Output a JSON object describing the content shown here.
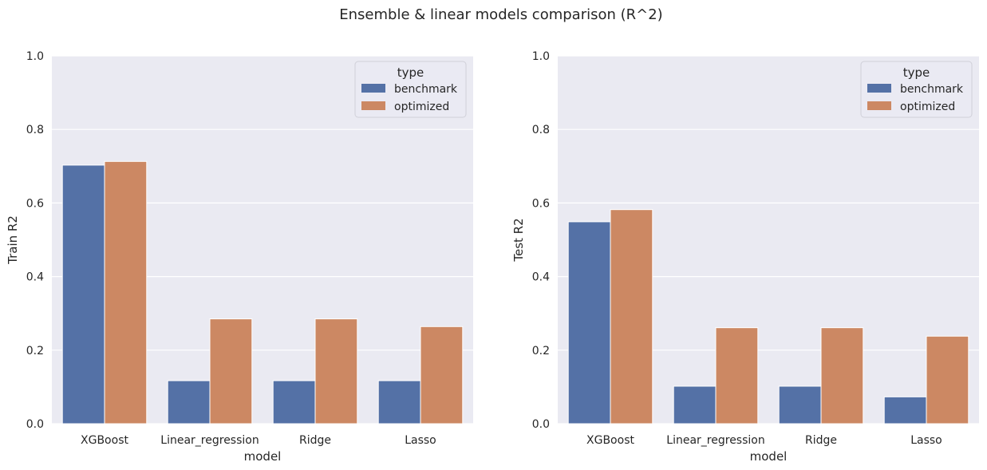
{
  "figure": {
    "title": "Ensemble & linear models comparison (R^2)"
  },
  "colors": {
    "benchmark": "#5471a6",
    "optimized": "#cc8863",
    "panel_background": "#eaeaf2",
    "grid": "#ffffff"
  },
  "chart_data": [
    {
      "type": "bar",
      "title": "",
      "xlabel": "model",
      "ylabel": "Train R2",
      "ylim": [
        0,
        1
      ],
      "yticks": [
        "0.0",
        "0.2",
        "0.4",
        "0.6",
        "0.8",
        "1.0"
      ],
      "grid": true,
      "legend": {
        "title": "type",
        "placement": "top-right"
      },
      "categories": [
        "XGBoost",
        "Linear_regression",
        "Ridge",
        "Lasso"
      ],
      "series": [
        {
          "name": "benchmark",
          "values": [
            0.703,
            0.117,
            0.117,
            0.117
          ]
        },
        {
          "name": "optimized",
          "values": [
            0.713,
            0.285,
            0.285,
            0.264
          ]
        }
      ]
    },
    {
      "type": "bar",
      "title": "",
      "xlabel": "model",
      "ylabel": "Test R2",
      "ylim": [
        0,
        1
      ],
      "yticks": [
        "0.0",
        "0.2",
        "0.4",
        "0.6",
        "0.8",
        "1.0"
      ],
      "grid": true,
      "legend": {
        "title": "type",
        "placement": "top-right"
      },
      "categories": [
        "XGBoost",
        "Linear_regression",
        "Ridge",
        "Lasso"
      ],
      "series": [
        {
          "name": "benchmark",
          "values": [
            0.549,
            0.102,
            0.102,
            0.073
          ]
        },
        {
          "name": "optimized",
          "values": [
            0.582,
            0.261,
            0.261,
            0.238
          ]
        }
      ]
    }
  ]
}
